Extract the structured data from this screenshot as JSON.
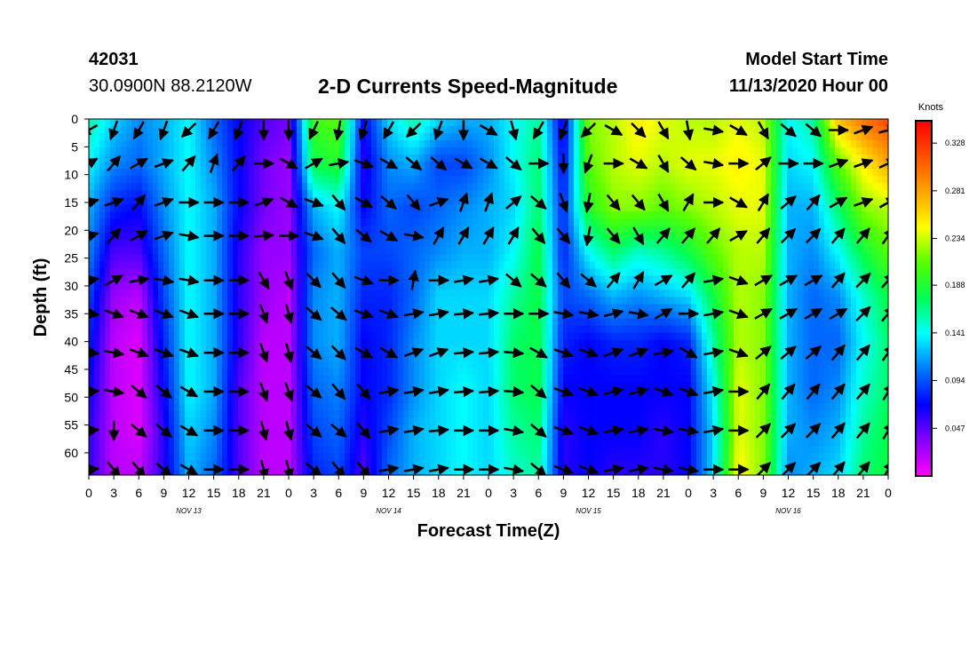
{
  "header": {
    "station_id": "42031",
    "coordinates": "30.0900N 88.2120W",
    "title": "2-D Currents Speed-Magnitude",
    "model_start_label": "Model Start Time",
    "model_start_value": "11/13/2020 Hour 00"
  },
  "chart_data": {
    "type": "heatmap",
    "title": "2-D Currents Speed-Magnitude",
    "xlabel": "Forecast Time(Z)",
    "ylabel": "Depth (ft)",
    "x_tick_labels": [
      "0",
      "3",
      "6",
      "9",
      "12",
      "15",
      "18",
      "21",
      "0",
      "3",
      "6",
      "9",
      "12",
      "15",
      "18",
      "21",
      "0",
      "3",
      "6",
      "9",
      "12",
      "15",
      "18",
      "21",
      "0",
      "3",
      "6",
      "9",
      "12",
      "15",
      "18",
      "21",
      "0"
    ],
    "x_hours": [
      0,
      3,
      6,
      9,
      12,
      15,
      18,
      21,
      24,
      27,
      30,
      33,
      36,
      39,
      42,
      45,
      48,
      51,
      54,
      57,
      60,
      63,
      66,
      69,
      72,
      75,
      78,
      81,
      84,
      87,
      90,
      93,
      96
    ],
    "xlim_hours": [
      0,
      96
    ],
    "date_labels": [
      {
        "hour": 12,
        "label": "NOV 13"
      },
      {
        "hour": 36,
        "label": "NOV 14"
      },
      {
        "hour": 60,
        "label": "NOV 15"
      },
      {
        "hour": 84,
        "label": "NOV 16"
      }
    ],
    "y_ticks": [
      0,
      5,
      10,
      15,
      20,
      25,
      30,
      35,
      40,
      45,
      50,
      55,
      60
    ],
    "ylim": [
      0,
      64
    ],
    "y_inverted": true,
    "colorbar": {
      "unit": "Knots",
      "ticks": [
        "0.328",
        "0.281",
        "0.234",
        "0.188",
        "0.141",
        "0.094",
        "0.047"
      ],
      "range": [
        0.0,
        0.35
      ],
      "colors": [
        "#ff00ff",
        "#8800ff",
        "#0000ff",
        "#0077ff",
        "#00ffff",
        "#00ff55",
        "#55ff00",
        "#ffff00",
        "#ffa500",
        "#ff5000",
        "#ff0000"
      ]
    },
    "speed_grid_hours": [
      0,
      3,
      6,
      9,
      12,
      15,
      18,
      21,
      24,
      27,
      30,
      33,
      36,
      39,
      42,
      45,
      48,
      51,
      54,
      57,
      60,
      63,
      66,
      69,
      72,
      75,
      78,
      81,
      84,
      87,
      90,
      93,
      96
    ],
    "speed_grid_depths": [
      0,
      8,
      16,
      24,
      32,
      40,
      48,
      56,
      64
    ],
    "speed_grid": [
      [
        0.16,
        0.14,
        0.12,
        0.11,
        0.09,
        0.08,
        0.07,
        0.06,
        0.06
      ],
      [
        0.13,
        0.11,
        0.08,
        0.05,
        0.03,
        0.02,
        0.02,
        0.02,
        0.02
      ],
      [
        0.11,
        0.1,
        0.07,
        0.05,
        0.02,
        0.01,
        0.01,
        0.01,
        0.02
      ],
      [
        0.12,
        0.12,
        0.11,
        0.1,
        0.09,
        0.08,
        0.07,
        0.06,
        0.06
      ],
      [
        0.14,
        0.14,
        0.14,
        0.14,
        0.14,
        0.14,
        0.14,
        0.13,
        0.12
      ],
      [
        0.1,
        0.11,
        0.12,
        0.12,
        0.12,
        0.12,
        0.12,
        0.11,
        0.1
      ],
      [
        0.07,
        0.07,
        0.07,
        0.06,
        0.06,
        0.06,
        0.05,
        0.05,
        0.05
      ],
      [
        0.05,
        0.04,
        0.04,
        0.03,
        0.03,
        0.02,
        0.02,
        0.02,
        0.02
      ],
      [
        0.04,
        0.03,
        0.03,
        0.03,
        0.02,
        0.02,
        0.02,
        0.02,
        0.02
      ],
      [
        0.2,
        0.18,
        0.12,
        0.1,
        0.11,
        0.11,
        0.1,
        0.09,
        0.08
      ],
      [
        0.21,
        0.19,
        0.14,
        0.12,
        0.12,
        0.12,
        0.11,
        0.1,
        0.09
      ],
      [
        0.07,
        0.06,
        0.07,
        0.09,
        0.08,
        0.07,
        0.07,
        0.06,
        0.05
      ],
      [
        0.13,
        0.11,
        0.1,
        0.09,
        0.08,
        0.08,
        0.08,
        0.09,
        0.1
      ],
      [
        0.16,
        0.12,
        0.09,
        0.1,
        0.1,
        0.11,
        0.11,
        0.12,
        0.12
      ],
      [
        0.13,
        0.09,
        0.1,
        0.11,
        0.13,
        0.13,
        0.13,
        0.13,
        0.13
      ],
      [
        0.12,
        0.09,
        0.11,
        0.12,
        0.13,
        0.13,
        0.14,
        0.14,
        0.14
      ],
      [
        0.12,
        0.11,
        0.12,
        0.12,
        0.13,
        0.13,
        0.13,
        0.13,
        0.13
      ],
      [
        0.14,
        0.14,
        0.13,
        0.14,
        0.16,
        0.17,
        0.17,
        0.16,
        0.15
      ],
      [
        0.16,
        0.17,
        0.17,
        0.18,
        0.18,
        0.18,
        0.18,
        0.17,
        0.16
      ],
      [
        0.06,
        0.07,
        0.08,
        0.08,
        0.09,
        0.08,
        0.07,
        0.06,
        0.06
      ],
      [
        0.22,
        0.21,
        0.19,
        0.14,
        0.1,
        0.07,
        0.07,
        0.07,
        0.07
      ],
      [
        0.23,
        0.23,
        0.22,
        0.17,
        0.12,
        0.08,
        0.07,
        0.07,
        0.06
      ],
      [
        0.25,
        0.24,
        0.22,
        0.15,
        0.11,
        0.08,
        0.07,
        0.07,
        0.06
      ],
      [
        0.24,
        0.23,
        0.21,
        0.16,
        0.12,
        0.07,
        0.07,
        0.06,
        0.06
      ],
      [
        0.23,
        0.24,
        0.22,
        0.18,
        0.13,
        0.08,
        0.07,
        0.07,
        0.07
      ],
      [
        0.23,
        0.24,
        0.23,
        0.21,
        0.18,
        0.16,
        0.14,
        0.13,
        0.13
      ],
      [
        0.24,
        0.25,
        0.24,
        0.23,
        0.23,
        0.23,
        0.24,
        0.24,
        0.25
      ],
      [
        0.23,
        0.24,
        0.24,
        0.23,
        0.22,
        0.22,
        0.22,
        0.22,
        0.22
      ],
      [
        0.14,
        0.13,
        0.12,
        0.12,
        0.12,
        0.12,
        0.12,
        0.12,
        0.11
      ],
      [
        0.16,
        0.14,
        0.12,
        0.11,
        0.1,
        0.1,
        0.1,
        0.11,
        0.12
      ],
      [
        0.27,
        0.21,
        0.17,
        0.14,
        0.11,
        0.1,
        0.11,
        0.12,
        0.13
      ],
      [
        0.3,
        0.25,
        0.22,
        0.18,
        0.15,
        0.14,
        0.15,
        0.16,
        0.17
      ],
      [
        0.32,
        0.28,
        0.23,
        0.21,
        0.18,
        0.17,
        0.17,
        0.18,
        0.18
      ]
    ],
    "vector_rows_ft": [
      2,
      8,
      15,
      21,
      29,
      35,
      42,
      49,
      56,
      63
    ],
    "vector_cols_hours": [
      0,
      3,
      6,
      9,
      12,
      15,
      18,
      21,
      24,
      27,
      30,
      33,
      36,
      39,
      42,
      45,
      48,
      51,
      54,
      57,
      60,
      63,
      66,
      69,
      72,
      75,
      78,
      81,
      84,
      87,
      90,
      93,
      96
    ],
    "vector_directions_deg": [
      [
        240,
        200,
        210,
        200,
        225,
        210,
        200,
        180,
        180,
        205,
        190,
        200,
        210,
        225,
        200,
        180,
        120,
        165,
        210,
        200,
        225,
        120,
        135,
        150,
        170,
        100,
        120,
        150,
        130,
        130,
        90,
        70,
        75
      ],
      [
        60,
        40,
        60,
        70,
        40,
        20,
        40,
        90,
        120,
        60,
        80,
        110,
        120,
        130,
        130,
        120,
        120,
        130,
        90,
        180,
        200,
        90,
        120,
        150,
        130,
        100,
        90,
        50,
        90,
        90,
        70,
        70,
        65
      ],
      [
        75,
        70,
        40,
        70,
        90,
        90,
        90,
        70,
        120,
        110,
        140,
        120,
        130,
        140,
        70,
        20,
        20,
        50,
        130,
        160,
        190,
        140,
        140,
        150,
        30,
        90,
        120,
        30,
        50,
        40,
        60,
        70,
        60
      ],
      [
        75,
        40,
        60,
        70,
        100,
        90,
        90,
        85,
        90,
        110,
        140,
        130,
        120,
        100,
        30,
        30,
        30,
        30,
        140,
        140,
        190,
        140,
        150,
        40,
        40,
        40,
        60,
        40,
        45,
        45,
        40,
        40,
        35
      ],
      [
        80,
        60,
        80,
        100,
        100,
        90,
        90,
        150,
        160,
        135,
        140,
        110,
        90,
        10,
        90,
        80,
        80,
        130,
        130,
        140,
        130,
        40,
        30,
        60,
        40,
        80,
        110,
        60,
        60,
        60,
        40,
        45,
        40
      ],
      [
        95,
        110,
        110,
        110,
        110,
        90,
        90,
        160,
        165,
        130,
        130,
        110,
        110,
        80,
        80,
        85,
        85,
        90,
        90,
        100,
        100,
        75,
        100,
        60,
        90,
        80,
        110,
        60,
        60,
        60,
        60,
        45,
        40
      ],
      [
        95,
        100,
        110,
        110,
        110,
        90,
        90,
        160,
        165,
        130,
        135,
        120,
        120,
        70,
        70,
        85,
        85,
        95,
        120,
        110,
        110,
        70,
        70,
        80,
        120,
        80,
        110,
        50,
        50,
        50,
        40,
        40,
        35
      ],
      [
        85,
        100,
        130,
        130,
        120,
        90,
        90,
        160,
        160,
        130,
        140,
        140,
        80,
        80,
        80,
        85,
        85,
        95,
        130,
        110,
        110,
        75,
        75,
        110,
        110,
        80,
        90,
        40,
        40,
        40,
        40,
        40,
        30
      ],
      [
        85,
        180,
        130,
        130,
        120,
        90,
        90,
        165,
        165,
        130,
        130,
        140,
        80,
        80,
        85,
        90,
        90,
        100,
        130,
        110,
        110,
        80,
        80,
        100,
        100,
        80,
        90,
        45,
        45,
        45,
        40,
        40,
        30
      ],
      [
        85,
        140,
        140,
        130,
        120,
        90,
        90,
        165,
        165,
        130,
        140,
        140,
        80,
        80,
        80,
        90,
        90,
        100,
        130,
        110,
        110,
        80,
        80,
        100,
        100,
        90,
        90,
        45,
        45,
        45,
        40,
        40,
        30
      ]
    ]
  }
}
